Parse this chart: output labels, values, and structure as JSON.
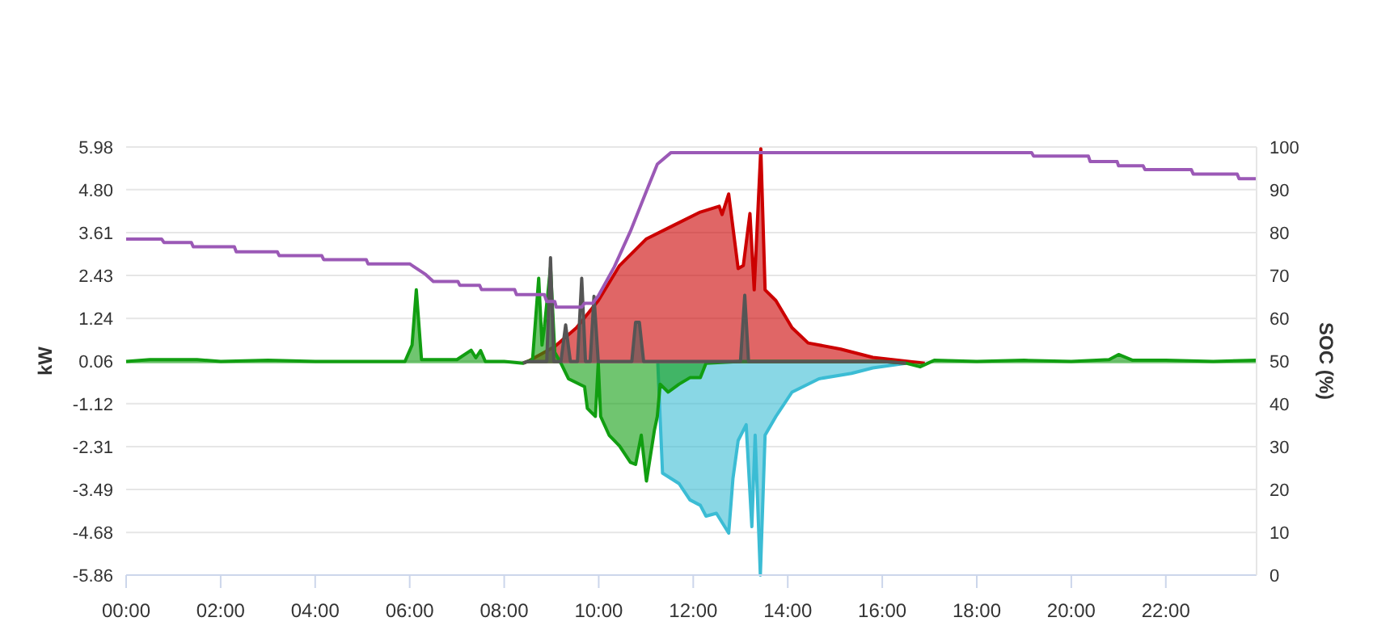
{
  "chart_data": {
    "type": "area",
    "ylabel": "kW",
    "y2label": "SOC (%)",
    "xlim": [
      0,
      23.92
    ],
    "xticks": [
      {
        "value": 0,
        "label": "00:00"
      },
      {
        "value": 2,
        "label": "02:00"
      },
      {
        "value": 4,
        "label": "04:00"
      },
      {
        "value": 6,
        "label": "06:00"
      },
      {
        "value": 8,
        "label": "08:00"
      },
      {
        "value": 10,
        "label": "10:00"
      },
      {
        "value": 12,
        "label": "12:00"
      },
      {
        "value": 14,
        "label": "14:00"
      },
      {
        "value": 16,
        "label": "16:00"
      },
      {
        "value": 18,
        "label": "18:00"
      },
      {
        "value": 20,
        "label": "20:00"
      },
      {
        "value": 22,
        "label": "22:00"
      }
    ],
    "ylim": [
      -5.86,
      5.98
    ],
    "yticks": [
      -5.86,
      -4.68,
      -3.49,
      -2.31,
      -1.12,
      0.06,
      1.24,
      2.43,
      3.61,
      {
        "value": 4.8,
        "label": "4.80"
      },
      5.98
    ],
    "y2lim": [
      0,
      100
    ],
    "y2ticks": [
      0,
      10,
      20,
      30,
      40,
      50,
      60,
      70,
      80,
      90,
      100
    ],
    "grid": "y",
    "series": [
      {
        "color": "#3bbcd4",
        "x": [
          11.25,
          11.35,
          11.7,
          11.93,
          12.15,
          12.27,
          12.49,
          12.75,
          12.84,
          12.95,
          13.12,
          13.24,
          13.31,
          13.42,
          13.52,
          13.75,
          14.09,
          14.66,
          15.35,
          15.8,
          16.5
        ],
        "values": [
          0,
          -3.04,
          -3.33,
          -3.78,
          -3.93,
          -4.23,
          -4.15,
          -4.7,
          -3.19,
          -2.14,
          -1.7,
          -4.52,
          -1.99,
          -5.86,
          -1.99,
          -1.47,
          -0.8,
          -0.43,
          -0.28,
          -0.13,
          0
        ]
      },
      {
        "color": "#cc0000",
        "x": [
          8.4,
          8.5,
          9.07,
          9.53,
          9.99,
          10.44,
          11.01,
          11.58,
          12.15,
          12.55,
          12.61,
          12.75,
          12.95,
          13.06,
          13.2,
          13.29,
          13.43,
          13.52,
          13.75,
          14.09,
          14.43,
          15.12,
          15.8,
          16.48,
          16.9
        ],
        "values": [
          0,
          0.05,
          0.46,
          0.98,
          1.73,
          2.7,
          3.44,
          3.81,
          4.18,
          4.34,
          4.11,
          4.68,
          2.62,
          2.7,
          4.14,
          2.03,
          5.93,
          2.03,
          1.73,
          0.98,
          0.56,
          0.39,
          0.16,
          0.06,
          0
        ]
      },
      {
        "color": "#119e11",
        "x": [
          0,
          0.5,
          1,
          1.5,
          2,
          3,
          4,
          5,
          5.9,
          6.05,
          6.14,
          6.25,
          7,
          7.3,
          7.4,
          7.5,
          7.6,
          8,
          8.4,
          8.6,
          8.73,
          8.8,
          8.85,
          8.98,
          9.07,
          9.2,
          9.36,
          9.7,
          9.76,
          9.93,
          9.99,
          10.04,
          10.22,
          10.44,
          10.67,
          10.78,
          10.9,
          11.01,
          11.18,
          11.24,
          11.3,
          11.47,
          11.7,
          11.93,
          12.15,
          12.27,
          13,
          14,
          15,
          16,
          16.5,
          16.8,
          17.1,
          18,
          19,
          20,
          20.8,
          21,
          21.3,
          22,
          23,
          23.92
        ],
        "values": [
          0.05,
          0.1,
          0.1,
          0.1,
          0.05,
          0.08,
          0.05,
          0.05,
          0.05,
          0.5,
          2.03,
          0.1,
          0.1,
          0.36,
          0.15,
          0.35,
          0.05,
          0.05,
          0,
          0.1,
          2.35,
          0.5,
          1.0,
          2.65,
          0.3,
          0,
          -0.43,
          -0.65,
          -1.25,
          -1.47,
          0,
          -1.47,
          -1.99,
          -2.29,
          -2.74,
          -2.8,
          -1.99,
          -3.26,
          -1.84,
          -1.47,
          -0.58,
          -0.8,
          -0.58,
          -0.4,
          -0.4,
          0,
          0.05,
          0.05,
          0.05,
          0.05,
          0,
          -0.1,
          0.08,
          0.05,
          0.08,
          0.05,
          0.1,
          0.24,
          0.08,
          0.08,
          0.05,
          0.08
        ]
      },
      {
        "color": "#555555",
        "x": [
          8.4,
          8.5,
          8.9,
          8.98,
          9.05,
          9.2,
          9.3,
          9.4,
          9.55,
          9.64,
          9.72,
          9.82,
          9.9,
          9.99,
          10.7,
          10.78,
          10.86,
          10.95,
          13,
          13.09,
          13.17,
          16,
          16.5
        ],
        "values": [
          0,
          0.05,
          0.05,
          2.92,
          0.05,
          0.05,
          1.06,
          0.05,
          0.05,
          2.35,
          0.05,
          0.05,
          1.85,
          0.05,
          0.05,
          1.13,
          1.13,
          0.05,
          0.05,
          1.88,
          0.05,
          0.05,
          0
        ]
      },
      {
        "type": "line",
        "axis": "y2",
        "color": "#9b59b6",
        "x": [
          0,
          0.75,
          0.8,
          1.38,
          1.42,
          2.29,
          2.33,
          3.2,
          3.24,
          4.14,
          4.18,
          5.08,
          5.12,
          6.0,
          6.34,
          6.5,
          7.02,
          7.06,
          7.48,
          7.52,
          8.22,
          8.26,
          8.85,
          8.9,
          9.07,
          9.1,
          9.64,
          9.7,
          9.87,
          9.99,
          10.33,
          10.67,
          11.01,
          11.24,
          11.53,
          19.16,
          19.2,
          20.36,
          20.4,
          20.97,
          21.0,
          21.52,
          21.56,
          22.54,
          22.58,
          23.51,
          23.55,
          23.92
        ],
        "values": [
          78.5,
          78.5,
          77.7,
          77.7,
          76.7,
          76.7,
          75.5,
          75.5,
          74.6,
          74.6,
          73.7,
          73.7,
          72.7,
          72.7,
          70.2,
          68.6,
          68.6,
          67.7,
          67.7,
          66.7,
          66.7,
          65.5,
          65.5,
          63.9,
          63.9,
          62.6,
          62.6,
          63.5,
          63.5,
          65.2,
          72,
          80.3,
          89.7,
          96,
          98.7,
          98.7,
          97.9,
          97.9,
          96.6,
          96.6,
          95.6,
          95.6,
          94.7,
          94.7,
          93.7,
          93.7,
          92.6,
          92.6
        ]
      }
    ]
  }
}
